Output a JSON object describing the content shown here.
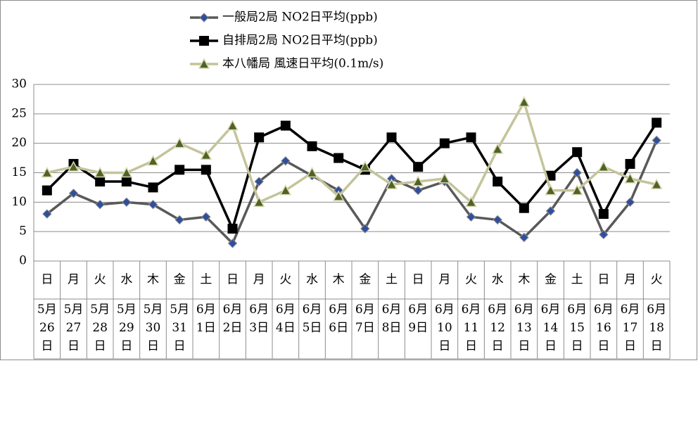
{
  "chart_data": {
    "type": "line",
    "weekdays": [
      "日",
      "月",
      "火",
      "水",
      "木",
      "金",
      "土",
      "日",
      "月",
      "火",
      "水",
      "木",
      "金",
      "土",
      "日",
      "月",
      "火",
      "水",
      "木",
      "金",
      "土",
      "日",
      "月",
      "火"
    ],
    "categories": [
      "5月26日",
      "5月27日",
      "5月28日",
      "5月29日",
      "5月30日",
      "5月31日",
      "6月1日",
      "6月2日",
      "6月3日",
      "6月4日",
      "6月5日",
      "6月6日",
      "6月7日",
      "6月8日",
      "6月9日",
      "6月10日",
      "6月11日",
      "6月12日",
      "6月13日",
      "6月14日",
      "6月15日",
      "6月16日",
      "6月17日",
      "6月18日"
    ],
    "series": [
      {
        "name": "一般局2局 NO2日平均(ppb)",
        "color": "#595959",
        "marker": "diamond",
        "marker_color": "#2f4f9e",
        "values": [
          8,
          11.5,
          9.6,
          10,
          9.6,
          7,
          7.5,
          3,
          13.5,
          17,
          14.5,
          12,
          5.5,
          14,
          12,
          13.5,
          7.5,
          7,
          4,
          8.5,
          15,
          4.5,
          10,
          20.5
        ]
      },
      {
        "name": "自排局2局 NO2日平均(ppb)",
        "color": "#000000",
        "marker": "square",
        "marker_color": "#000000",
        "values": [
          12,
          16.5,
          13.5,
          13.5,
          12.5,
          15.5,
          15.5,
          5.5,
          21,
          23,
          19.5,
          17.5,
          15.5,
          21,
          16,
          20,
          21,
          13.5,
          9,
          14.5,
          18.5,
          8,
          16.5,
          23.5
        ]
      },
      {
        "name": "本八幡局 風速日平均(0.1m/s)",
        "color": "#c4c49a",
        "marker": "triangle",
        "marker_color": "#4f6228",
        "values": [
          15,
          16,
          15,
          15,
          17,
          20,
          18,
          23,
          10,
          12,
          15,
          11,
          16,
          13,
          13.5,
          14,
          10,
          19,
          27,
          12,
          12,
          16,
          14,
          13
        ]
      }
    ],
    "ylim": [
      0,
      30
    ],
    "yticks": [
      0,
      5,
      10,
      15,
      20,
      25,
      30
    ],
    "grid": true
  }
}
